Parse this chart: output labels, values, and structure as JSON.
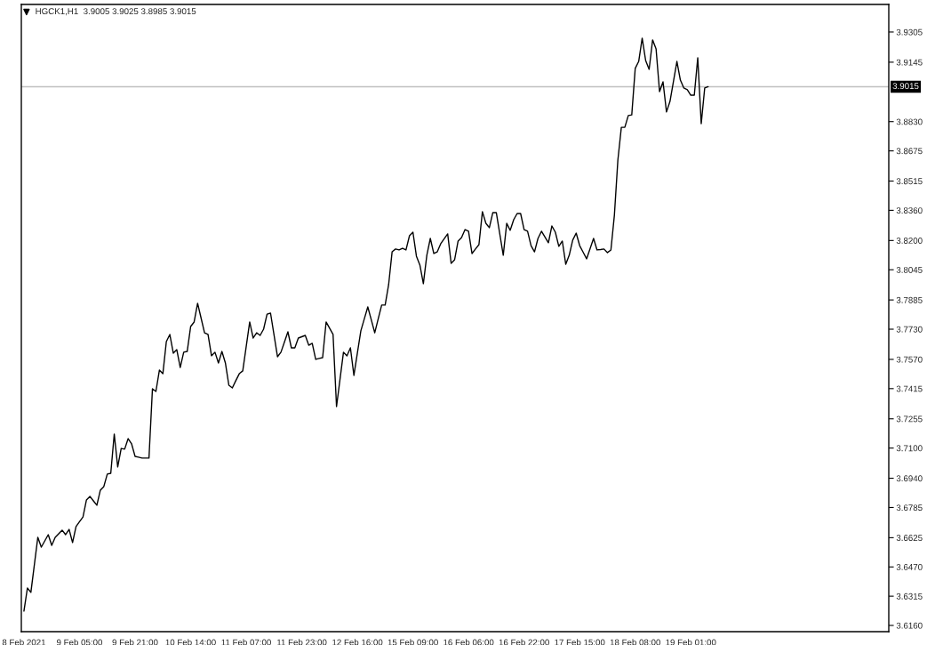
{
  "chart_data": {
    "type": "line",
    "title": "HGCK1,H1  3.9005 3.9025 3.8985 3.9015",
    "categories": [
      "8 Feb 2021",
      null,
      null,
      null,
      null,
      null,
      null,
      null,
      null,
      null,
      null,
      null,
      null,
      null,
      null,
      null,
      "9 Feb 05:00",
      null,
      null,
      null,
      null,
      null,
      null,
      null,
      null,
      null,
      null,
      null,
      null,
      null,
      null,
      null,
      "9 Feb 21:00",
      null,
      null,
      null,
      null,
      null,
      null,
      null,
      null,
      null,
      null,
      null,
      null,
      null,
      null,
      null,
      "10 Feb 14:00",
      null,
      null,
      null,
      null,
      null,
      null,
      null,
      null,
      null,
      null,
      null,
      null,
      null,
      null,
      null,
      "11 Feb 07:00",
      null,
      null,
      null,
      null,
      null,
      null,
      null,
      null,
      null,
      null,
      null,
      null,
      null,
      null,
      null,
      "11 Feb 23:00",
      null,
      null,
      null,
      null,
      null,
      null,
      null,
      null,
      null,
      null,
      null,
      null,
      null,
      null,
      null,
      "12 Feb 16:00",
      null,
      null,
      null,
      null,
      null,
      null,
      null,
      null,
      null,
      null,
      null,
      null,
      null,
      null,
      null,
      "15 Feb 09:00",
      null,
      null,
      null,
      null,
      null,
      null,
      null,
      null,
      null,
      null,
      null,
      null,
      null,
      null,
      null,
      "16 Feb 06:00",
      null,
      null,
      null,
      null,
      null,
      null,
      null,
      null,
      null,
      null,
      null,
      null,
      null,
      null,
      null,
      "16 Feb 22:00",
      null,
      null,
      null,
      null,
      null,
      null,
      null,
      null,
      null,
      null,
      null,
      null,
      null,
      null,
      null,
      "17 Feb 15:00",
      null,
      null,
      null,
      null,
      null,
      null,
      null,
      null,
      null,
      null,
      null,
      null,
      null,
      null,
      null,
      "18 Feb 08:00",
      null,
      null,
      null,
      null,
      null,
      null,
      null,
      null,
      null,
      null,
      null,
      null,
      null,
      null,
      null,
      "19 Feb 01:00",
      null,
      null,
      null,
      null,
      null,
      null,
      null,
      null,
      null,
      null,
      null,
      null,
      null,
      null,
      null,
      null,
      null,
      null,
      null,
      null,
      null,
      null,
      null,
      null,
      null,
      null,
      null,
      null,
      null,
      null,
      null,
      null,
      null,
      null,
      null,
      null,
      null,
      null,
      null,
      null,
      null,
      null,
      null,
      null,
      null,
      null,
      null,
      null,
      null,
      null,
      null,
      null,
      null,
      null,
      null,
      null,
      null
    ],
    "series": [
      {
        "color": "#000000",
        "values": [
          3.6236,
          3.6358,
          3.6335,
          3.6481,
          3.6627,
          3.6575,
          3.6608,
          3.6641,
          3.6584,
          3.6627,
          3.6646,
          3.6665,
          3.6641,
          3.6669,
          3.6599,
          3.6684,
          3.671,
          3.6735,
          3.6825,
          3.6844,
          3.682,
          3.6797,
          3.6877,
          3.6896,
          3.6962,
          3.6966,
          3.7174,
          3.7,
          3.7098,
          3.7094,
          3.715,
          3.7122,
          3.7056,
          3.7052,
          3.7047,
          3.7047,
          3.7047,
          3.7414,
          3.74,
          3.7513,
          3.7494,
          3.7664,
          3.7702,
          3.7603,
          3.7622,
          3.7527,
          3.7608,
          3.7612,
          3.7744,
          3.7768,
          3.7867,
          3.7789,
          3.7711,
          3.7702,
          3.7589,
          3.7608,
          3.7551,
          3.7612,
          3.7551,
          3.7433,
          3.7419,
          3.7457,
          3.7494,
          3.7509,
          3.7639,
          3.7768,
          3.7683,
          3.7711,
          3.7697,
          3.773,
          3.781,
          3.7815,
          3.77,
          3.7584,
          3.7608,
          3.7662,
          3.7716,
          3.7631,
          3.7631,
          3.7683,
          3.769,
          3.7697,
          3.7645,
          3.7655,
          3.757,
          3.7575,
          3.7579,
          3.7768,
          3.7735,
          3.7702,
          3.732,
          3.7464,
          3.7608,
          3.7589,
          3.7631,
          3.7485,
          3.7603,
          3.7721,
          3.7785,
          3.7848,
          3.778,
          3.7711,
          3.7785,
          3.7858,
          3.7858,
          3.7966,
          3.814,
          3.8155,
          3.815,
          3.8159,
          3.815,
          3.8225,
          3.8244,
          3.8117,
          3.807,
          3.7971,
          3.8122,
          3.8211,
          3.8131,
          3.814,
          3.8183,
          3.8209,
          3.8235,
          3.8079,
          3.8098,
          3.8197,
          3.8216,
          3.8258,
          3.8249,
          3.8131,
          3.8155,
          3.8178,
          3.8353,
          3.8291,
          3.8268,
          3.8348,
          3.8348,
          3.8235,
          3.8122,
          3.8291,
          3.8254,
          3.831,
          3.8343,
          3.8343,
          3.8258,
          3.8249,
          3.8173,
          3.814,
          3.8211,
          3.8249,
          3.8219,
          3.8188,
          3.8277,
          3.8244,
          3.8169,
          3.8197,
          3.8074,
          3.8122,
          3.8202,
          3.8239,
          3.8173,
          3.8138,
          3.8103,
          3.8157,
          3.8211,
          3.815,
          3.8152,
          3.8155,
          3.8136,
          3.815,
          3.8334,
          3.8626,
          3.88,
          3.88,
          3.8862,
          3.8866,
          3.9112,
          3.9149,
          3.9272,
          3.9154,
          3.9107,
          3.9263,
          3.9215,
          3.8989,
          3.9041,
          3.8881,
          3.8937,
          3.9043,
          3.9149,
          3.905,
          3.9008,
          3.8999,
          3.897,
          3.897,
          3.9168,
          3.8819,
          3.9008,
          3.9015,
          null,
          null,
          null,
          null,
          null,
          null,
          null,
          null,
          null,
          null,
          null,
          null,
          null,
          null,
          null,
          null,
          null,
          null,
          null,
          null,
          null,
          null,
          null,
          null,
          null,
          null,
          null,
          null,
          null,
          null,
          null,
          null,
          null,
          null,
          null,
          null,
          null,
          null,
          null,
          null,
          null,
          null,
          null,
          null,
          null,
          null,
          null,
          null,
          null,
          null,
          null,
          null
        ]
      }
    ],
    "ylim": [
      3.6127,
      3.9451
    ],
    "yticks": [
      3.9305,
      3.9145,
      {
        "value": 3.883,
        "label": "3.8830"
      },
      3.8675,
      3.8515,
      {
        "value": 3.836,
        "label": "3.8360"
      },
      {
        "value": 3.82,
        "label": "3.8200"
      },
      3.8045,
      3.7885,
      {
        "value": 3.773,
        "label": "3.7730"
      },
      {
        "value": 3.757,
        "label": "3.7570"
      },
      3.7415,
      3.7255,
      {
        "value": 3.71,
        "label": "3.7100"
      },
      {
        "value": 3.694,
        "label": "3.6940"
      },
      3.6785,
      3.6625,
      {
        "value": 3.647,
        "label": "3.6470"
      },
      3.6315,
      {
        "value": 3.616,
        "label": "3.6160"
      }
    ],
    "ref_lines": [
      {
        "axis": "y",
        "value": 3.9015,
        "label": "3.9015",
        "color": "#c0c0c0"
      }
    ],
    "grid": false,
    "legend": false,
    "marker": "none",
    "line_style": "solid"
  }
}
